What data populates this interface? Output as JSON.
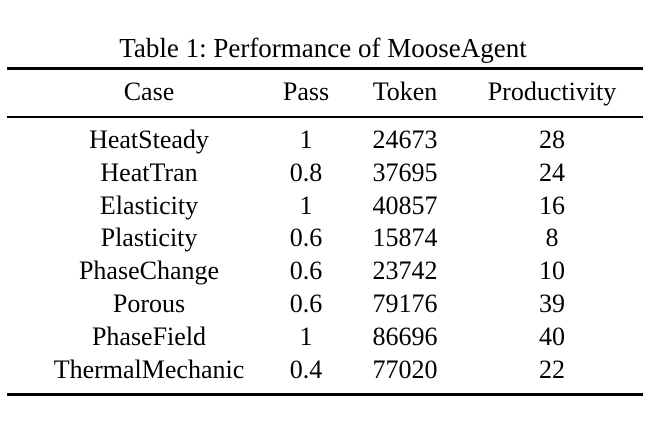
{
  "table": {
    "caption": "Table 1: Performance of MooseAgent",
    "headers": [
      "Case",
      "Pass",
      "Token",
      "Productivity"
    ],
    "rows": [
      [
        "HeatSteady",
        "1",
        "24673",
        "28"
      ],
      [
        "HeatTran",
        "0.8",
        "37695",
        "24"
      ],
      [
        "Elasticity",
        "1",
        "40857",
        "16"
      ],
      [
        "Plasticity",
        "0.6",
        "15874",
        "8"
      ],
      [
        "PhaseChange",
        "0.6",
        "23742",
        "10"
      ],
      [
        "Porous",
        "0.6",
        "79176",
        "39"
      ],
      [
        "PhaseField",
        "1",
        "86696",
        "40"
      ],
      [
        "ThermalMechanic",
        "0.4",
        "77020",
        "22"
      ]
    ]
  }
}
